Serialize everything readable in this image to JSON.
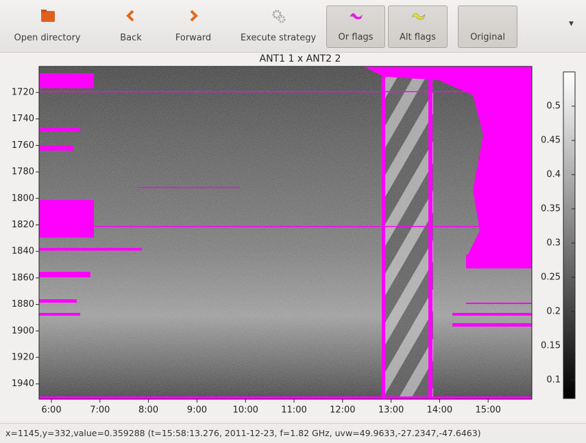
{
  "toolbar": {
    "buttons": [
      "Open directory",
      "Back",
      "Forward",
      "Execute strategy",
      "Or flags",
      "Alt flags",
      "Original"
    ]
  },
  "plot": {
    "title": "ANT1 1 x ANT2 2",
    "yticks": [
      1720,
      1740,
      1760,
      1780,
      1800,
      1820,
      1840,
      1860,
      1880,
      1900,
      1920,
      1940
    ],
    "xticks": [
      "6:00",
      "7:00",
      "8:00",
      "9:00",
      "10:00",
      "11:00",
      "12:00",
      "13:00",
      "14:00",
      "15:00"
    ],
    "colorbar_ticks": [
      0.5,
      0.45,
      0.4,
      0.35,
      0.3,
      0.25,
      0.2,
      0.15,
      0.1
    ]
  },
  "status": "x=1145,y=332,value=0.359288 (t=15:58:13.276, 2011-12-23, f=1.82 GHz, uvw=49.9633,-27.2347,-47.6463)"
}
